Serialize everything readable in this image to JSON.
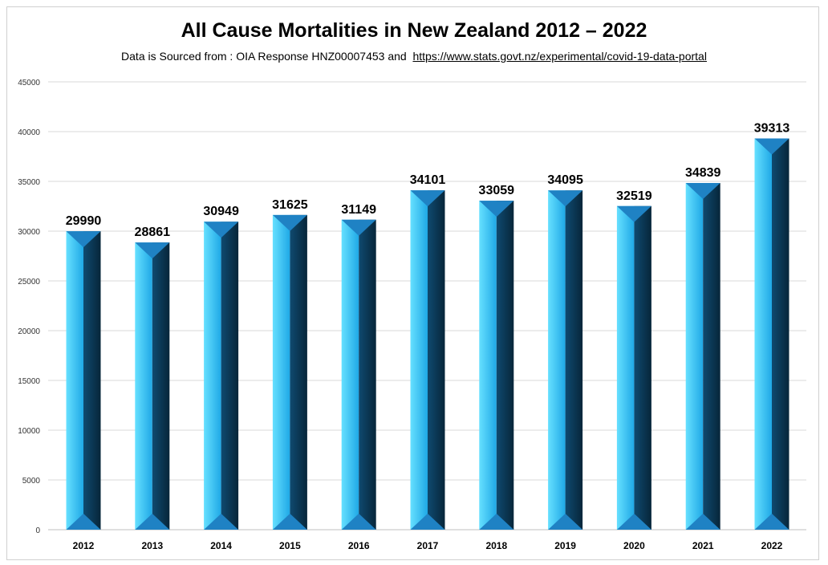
{
  "chart_data": {
    "type": "bar",
    "title": "All Cause Mortalities in New Zealand 2012 – 2022",
    "subtitle_prefix": "Data is Sourced from : OIA Response HNZ00007453 and",
    "subtitle_link": "https://www.stats.govt.nz/experimental/covid-19-data-portal",
    "categories": [
      "2012",
      "2013",
      "2014",
      "2015",
      "2016",
      "2017",
      "2018",
      "2019",
      "2020",
      "2021",
      "2022"
    ],
    "values": [
      29990,
      28861,
      30949,
      31625,
      31149,
      34101,
      33059,
      34095,
      32519,
      34839,
      39313
    ],
    "ylim": [
      0,
      45000
    ],
    "yticks": [
      0,
      5000,
      10000,
      15000,
      20000,
      25000,
      30000,
      35000,
      40000,
      45000
    ],
    "xlabel": "",
    "ylabel": "",
    "grid": true,
    "legend": "none",
    "colors": {
      "light": "#33ccff",
      "mid": "#1f82c4",
      "dark": "#0b3550",
      "grid": "#d9d9d9"
    }
  }
}
